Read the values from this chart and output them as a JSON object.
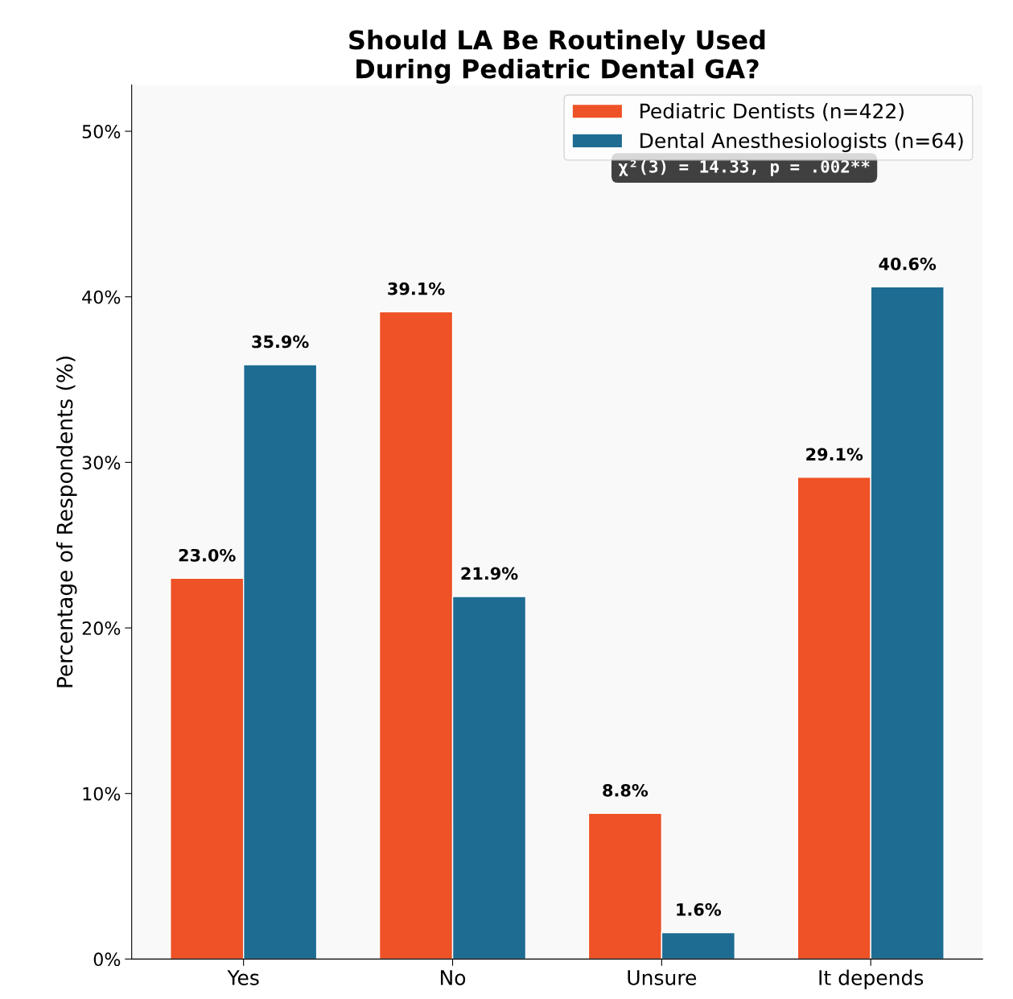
{
  "chart_data": {
    "type": "bar",
    "title": "Should LA Be Routinely Used\nDuring Pediatric Dental GA?",
    "ylabel": "Percentage of Respondents (%)",
    "categories": [
      "Yes",
      "No",
      "Unsure",
      "It depends"
    ],
    "series": [
      {
        "name": "Pediatric Dentists (n=422)",
        "color": "#ee5226",
        "values": [
          23.0,
          39.1,
          8.8,
          29.1
        ]
      },
      {
        "name": "Dental Anesthesiologists (n=64)",
        "color": "#1f6c93",
        "values": [
          35.9,
          21.9,
          1.6,
          40.6
        ]
      }
    ],
    "ylim": [
      0,
      52.8
    ],
    "yticks": [
      {
        "value": 0,
        "label": "0%"
      },
      {
        "value": 10,
        "label": "10%"
      },
      {
        "value": 20,
        "label": "20%"
      },
      {
        "value": 30,
        "label": "30%"
      },
      {
        "value": 40,
        "label": "40%"
      },
      {
        "value": 50,
        "label": "50%"
      }
    ],
    "value_labels": [
      [
        "23.0%",
        "39.1%",
        "8.8%",
        "29.1%"
      ],
      [
        "35.9%",
        "21.9%",
        "1.6%",
        "40.6%"
      ]
    ],
    "annotations": [
      "χ²(3) = 14.33, p = .002**"
    ],
    "legend": "top right",
    "grid": false
  }
}
